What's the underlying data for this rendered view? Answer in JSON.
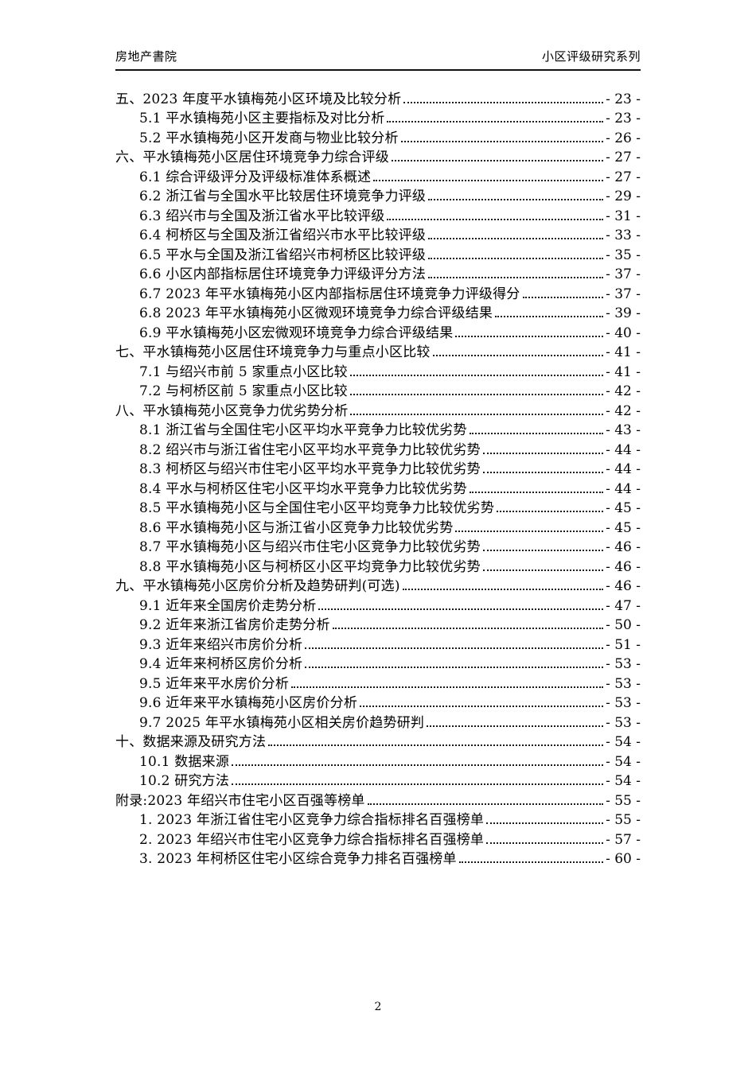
{
  "header": {
    "left": "房地产書院",
    "right": "小区评级研究系列"
  },
  "toc": {
    "entries": [
      {
        "level": 1,
        "text": "五、2023 年度平水镇梅苑小区环境及比较分析",
        "page": "- 23 -"
      },
      {
        "level": 2,
        "text": "5.1 平水镇梅苑小区主要指标及对比分析",
        "page": "- 23 -"
      },
      {
        "level": 2,
        "text": "5.2 平水镇梅苑小区开发商与物业比较分析",
        "page": "- 26 -"
      },
      {
        "level": 1,
        "text": "六、平水镇梅苑小区居住环境竞争力综合评级",
        "page": "- 27 -"
      },
      {
        "level": 2,
        "text": "6.1 综合评级评分及评级标准体系概述",
        "page": "- 27 -"
      },
      {
        "level": 2,
        "text": "6.2 浙江省与全国水平比较居住环境竞争力评级",
        "page": "- 29 -"
      },
      {
        "level": 2,
        "text": "6.3 绍兴市与全国及浙江省水平比较评级",
        "page": "- 31 -"
      },
      {
        "level": 2,
        "text": "6.4 柯桥区与全国及浙江省绍兴市水平比较评级",
        "page": "- 33 -"
      },
      {
        "level": 2,
        "text": "6.5 平水与全国及浙江省绍兴市柯桥区比较评级",
        "page": "- 35 -"
      },
      {
        "level": 2,
        "text": "6.6 小区内部指标居住环境竞争力评级评分方法",
        "page": "- 37 -"
      },
      {
        "level": 2,
        "text": "6.7 2023 年平水镇梅苑小区内部指标居住环境竞争力评级得分",
        "page": "- 37 -"
      },
      {
        "level": 2,
        "text": "6.8 2023 年平水镇梅苑小区微观环境竞争力综合评级结果",
        "page": "- 39 -"
      },
      {
        "level": 2,
        "text": "6.9 平水镇梅苑小区宏微观环境竞争力综合评级结果",
        "page": "- 40 -"
      },
      {
        "level": 1,
        "text": "七、平水镇梅苑小区居住环境竞争力与重点小区比较",
        "page": "- 41 -"
      },
      {
        "level": 2,
        "text": "7.1 与绍兴市前 5 家重点小区比较",
        "page": "- 41 -"
      },
      {
        "level": 2,
        "text": "7.2 与柯桥区前 5 家重点小区比较",
        "page": "- 42 -"
      },
      {
        "level": 1,
        "text": "八、平水镇梅苑小区竞争力优劣势分析",
        "page": "- 42 -"
      },
      {
        "level": 2,
        "text": "8.1 浙江省与全国住宅小区平均水平竞争力比较优劣势",
        "page": "- 43 -"
      },
      {
        "level": 2,
        "text": "8.2 绍兴市与浙江省住宅小区平均水平竞争力比较优劣势",
        "page": "- 44 -"
      },
      {
        "level": 2,
        "text": "8.3 柯桥区与绍兴市住宅小区平均水平竞争力比较优劣势",
        "page": "- 44 -"
      },
      {
        "level": 2,
        "text": "8.4 平水与柯桥区住宅小区平均水平竞争力比较优劣势",
        "page": "- 44 -"
      },
      {
        "level": 2,
        "text": "8.5 平水镇梅苑小区与全国住宅小区平均竞争力比较优劣势",
        "page": "- 45 -"
      },
      {
        "level": 2,
        "text": "8.6 平水镇梅苑小区与浙江省小区竞争力比较优劣势",
        "page": "- 45 -"
      },
      {
        "level": 2,
        "text": "8.7 平水镇梅苑小区与绍兴市住宅小区竞争力比较优劣势",
        "page": "- 46 -"
      },
      {
        "level": 2,
        "text": "8.8 平水镇梅苑小区与柯桥区小区平均竞争力比较优劣势",
        "page": "- 46 -"
      },
      {
        "level": 1,
        "text": "九、平水镇梅苑小区房价分析及趋势研判(可选)",
        "page": "- 46 -"
      },
      {
        "level": 2,
        "text": "9.1 近年来全国房价走势分析",
        "page": "- 47 -"
      },
      {
        "level": 2,
        "text": "9.2 近年来浙江省房价走势分析",
        "page": "- 50 -"
      },
      {
        "level": 2,
        "text": "9.3 近年来绍兴市房价分析",
        "page": "- 51 -"
      },
      {
        "level": 2,
        "text": "9.4 近年来柯桥区房价分析",
        "page": "- 53 -"
      },
      {
        "level": 2,
        "text": "9.5 近年来平水房价分析",
        "page": "- 53 -"
      },
      {
        "level": 2,
        "text": "9.6 近年来平水镇梅苑小区房价分析",
        "page": "- 53 -"
      },
      {
        "level": 2,
        "text": "9.7 2025 年平水镇梅苑小区相关房价趋势研判",
        "page": "- 53 -"
      },
      {
        "level": 1,
        "text": "十、数据来源及研究方法",
        "page": "- 54 -"
      },
      {
        "level": 2,
        "text": "10.1 数据来源",
        "page": "- 54 -"
      },
      {
        "level": 2,
        "text": "10.2 研究方法",
        "page": "- 54 -"
      },
      {
        "level": 1,
        "text": "附录:2023 年绍兴市住宅小区百强等榜单",
        "page": "- 55 -"
      },
      {
        "level": 2,
        "text": "1. 2023 年浙江省住宅小区竞争力综合指标排名百强榜单",
        "page": "- 55 -"
      },
      {
        "level": 2,
        "text": "2. 2023 年绍兴市住宅小区竞争力综合指标排名百强榜单",
        "page": "- 57 -"
      },
      {
        "level": 2,
        "text": "3. 2023 年柯桥区住宅小区综合竞争力排名百强榜单",
        "page": "- 60 -"
      }
    ]
  },
  "footer": {
    "page_number": "2"
  }
}
